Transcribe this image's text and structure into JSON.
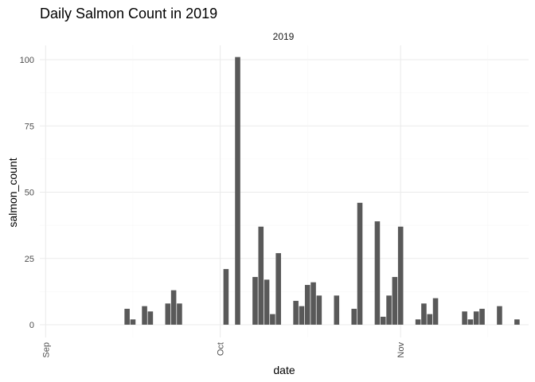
{
  "chart_data": {
    "type": "bar",
    "title": "Daily Salmon Count in 2019",
    "facet_label": "2019",
    "xlabel": "date",
    "ylabel": "salmon_count",
    "grid": true,
    "legend": "none",
    "bar_color": "#595959",
    "ylim": [
      0,
      101
    ],
    "y_ticks": [
      0,
      25,
      50,
      75,
      100
    ],
    "x_ticks": [
      {
        "label": "Sep",
        "date": "2019-09-01"
      },
      {
        "label": "Oct",
        "date": "2019-10-01"
      },
      {
        "label": "Nov",
        "date": "2019-11-01"
      }
    ],
    "xlim": [
      "2019-08-31",
      "2019-11-23"
    ],
    "points": [
      {
        "date": "2019-09-15",
        "value": 6
      },
      {
        "date": "2019-09-16",
        "value": 2
      },
      {
        "date": "2019-09-18",
        "value": 7
      },
      {
        "date": "2019-09-19",
        "value": 5
      },
      {
        "date": "2019-09-22",
        "value": 8
      },
      {
        "date": "2019-09-23",
        "value": 13
      },
      {
        "date": "2019-09-24",
        "value": 8
      },
      {
        "date": "2019-10-02",
        "value": 21
      },
      {
        "date": "2019-10-04",
        "value": 101
      },
      {
        "date": "2019-10-07",
        "value": 18
      },
      {
        "date": "2019-10-08",
        "value": 37
      },
      {
        "date": "2019-10-09",
        "value": 17
      },
      {
        "date": "2019-10-10",
        "value": 4
      },
      {
        "date": "2019-10-11",
        "value": 27
      },
      {
        "date": "2019-10-14",
        "value": 9
      },
      {
        "date": "2019-10-15",
        "value": 7
      },
      {
        "date": "2019-10-16",
        "value": 15
      },
      {
        "date": "2019-10-17",
        "value": 16
      },
      {
        "date": "2019-10-18",
        "value": 11
      },
      {
        "date": "2019-10-21",
        "value": 11
      },
      {
        "date": "2019-10-24",
        "value": 6
      },
      {
        "date": "2019-10-25",
        "value": 46
      },
      {
        "date": "2019-10-28",
        "value": 39
      },
      {
        "date": "2019-10-29",
        "value": 3
      },
      {
        "date": "2019-10-30",
        "value": 11
      },
      {
        "date": "2019-10-31",
        "value": 18
      },
      {
        "date": "2019-11-01",
        "value": 37
      },
      {
        "date": "2019-11-04",
        "value": 2
      },
      {
        "date": "2019-11-05",
        "value": 8
      },
      {
        "date": "2019-11-06",
        "value": 4
      },
      {
        "date": "2019-11-07",
        "value": 10
      },
      {
        "date": "2019-11-12",
        "value": 5
      },
      {
        "date": "2019-11-13",
        "value": 2
      },
      {
        "date": "2019-11-14",
        "value": 5
      },
      {
        "date": "2019-11-15",
        "value": 6
      },
      {
        "date": "2019-11-18",
        "value": 7
      },
      {
        "date": "2019-11-21",
        "value": 2
      }
    ]
  }
}
